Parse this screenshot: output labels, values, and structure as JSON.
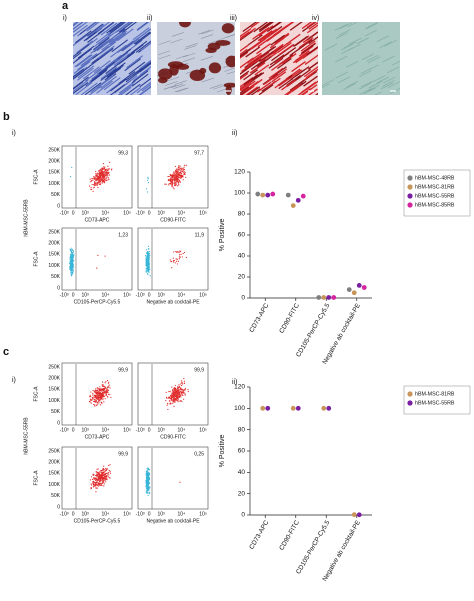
{
  "figure": {
    "panel_a": {
      "label": "a",
      "images": [
        "i)",
        "ii)",
        "iii)",
        "iv)"
      ]
    },
    "panel_b": {
      "label": "b",
      "left": "i)",
      "right": "ii)"
    },
    "panel_c": {
      "label": "c",
      "left": "i)",
      "right": "ii)"
    }
  },
  "flow_cytometry": [
    {
      "row_label": "hBM-MSC-55RB",
      "y_label": "FSC-A",
      "yticks": [
        "0",
        "50K",
        "100K",
        "150K",
        "200K",
        "250K"
      ],
      "xticks": [
        "-10³",
        "0",
        "10³",
        "10⁴",
        "10⁵"
      ],
      "plots": [
        {
          "x_label": "CD73-APC",
          "percent": "99,3"
        },
        {
          "x_label": "CD90-FITC",
          "percent": "97,7"
        },
        {
          "x_label": "CD105-PerCP-Cy5.5",
          "percent": "1,23"
        },
        {
          "x_label": "Negative ab cocktail-PE",
          "percent": "11,9"
        }
      ]
    },
    {
      "row_label": "hBM-MSC-55RB",
      "y_label": "FSC-A",
      "yticks": [
        "0",
        "50K",
        "100K",
        "150K",
        "200K",
        "250K"
      ],
      "xticks": [
        "-10³",
        "0",
        "10³",
        "10⁴",
        "10⁵"
      ],
      "plots": [
        {
          "x_label": "CD73-APC",
          "percent": "99,9"
        },
        {
          "x_label": "CD90-FITC",
          "percent": "99,9"
        },
        {
          "x_label": "CD105-PerCP-Cy5.5",
          "percent": "99,9"
        },
        {
          "x_label": "Negative ab cocktail-PE",
          "percent": "0,25"
        }
      ]
    }
  ],
  "chart_data": [
    {
      "type": "dot",
      "y_label": "% Positive",
      "categories": [
        "CD73-APC",
        "CD90-FITC",
        "CD105-PerCP-Cy5.5",
        "Negative ab cocktail-PE"
      ],
      "series": [
        {
          "name": "hBM-MSC-48RB",
          "color": "#7f7f7f",
          "values": [
            99,
            98,
            0.5,
            8
          ]
        },
        {
          "name": "hBM-MSC-81RB",
          "color": "#c8955a",
          "values": [
            98,
            88,
            0.5,
            5
          ]
        },
        {
          "name": "hBM-MSC-55RB",
          "color": "#7b1fa2",
          "values": [
            98,
            93,
            0.5,
            12
          ]
        },
        {
          "name": "hBM-MSC-85RB",
          "color": "#d6249f",
          "values": [
            99,
            97,
            0.5,
            10
          ]
        }
      ],
      "ylim": [
        0,
        120
      ],
      "yticks": [
        0,
        20,
        40,
        60,
        80,
        100,
        120
      ]
    },
    {
      "type": "dot",
      "y_label": "% Positive",
      "categories": [
        "CD73-APC",
        "CD90-FITC",
        "CD105-PerCP-Cy5.5",
        "Negative ab cocktail-PE"
      ],
      "series": [
        {
          "name": "hBM-MSC-81RB",
          "color": "#c8955a",
          "values": [
            100,
            100,
            100,
            0.3
          ]
        },
        {
          "name": "hBM-MSC-55RB",
          "color": "#7b1fa2",
          "values": [
            100,
            100,
            100,
            0.2
          ]
        }
      ],
      "ylim": [
        0,
        120
      ],
      "yticks": [
        0,
        20,
        40,
        60,
        80,
        100,
        120
      ]
    }
  ]
}
